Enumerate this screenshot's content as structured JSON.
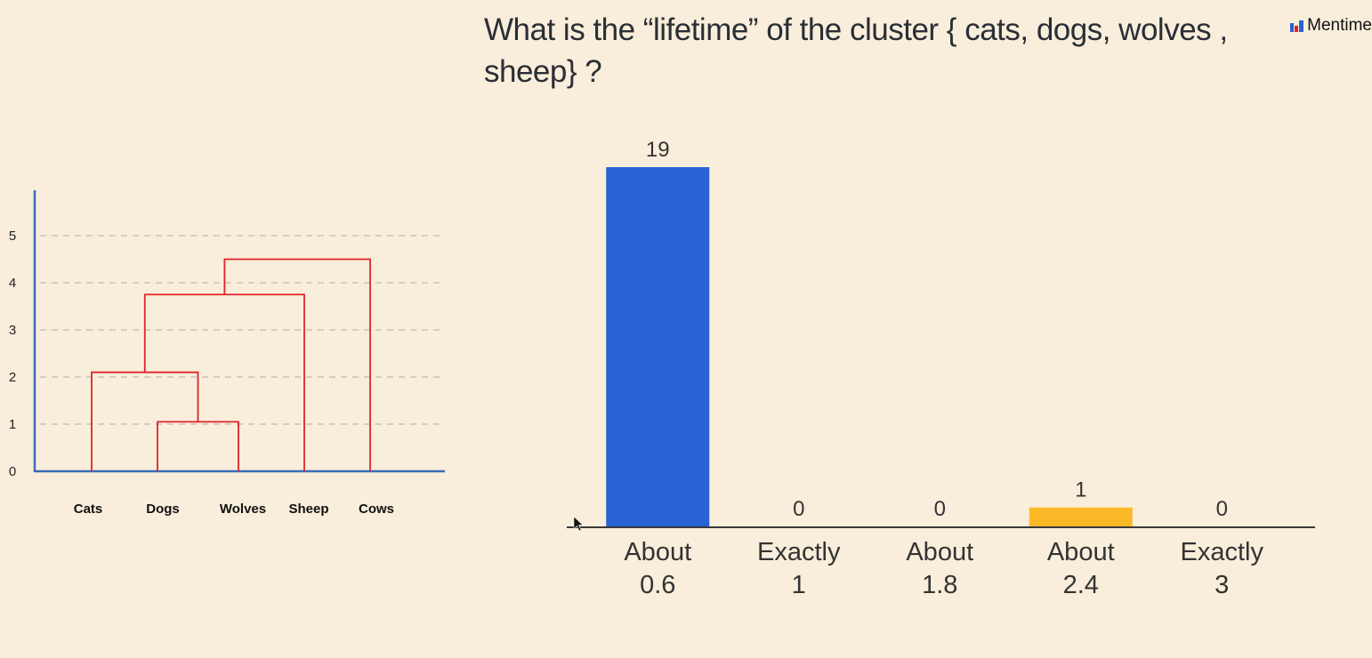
{
  "header": {
    "question": "What is the “lifetime” of the cluster { cats, dogs, wolves , sheep} ?",
    "brand": "Mentime"
  },
  "colors": {
    "background": "#f9eedb",
    "bar_primary": "#2962d4",
    "bar_highlight": "#fbb928",
    "dendrogram_line": "#e0242a",
    "axis_blue": "#3c6bb4",
    "grid": "#bdbab2"
  },
  "chart_data": [
    {
      "type": "bar",
      "title": "",
      "categories": [
        "About 0.6",
        "Exactly 1",
        "About 1.8",
        "About 2.4",
        "Exactly 3"
      ],
      "category_lines": [
        [
          "About",
          "0.6"
        ],
        [
          "Exactly",
          "1"
        ],
        [
          "About",
          "1.8"
        ],
        [
          "About",
          "2.4"
        ],
        [
          "Exactly",
          "3"
        ]
      ],
      "values": [
        19,
        0,
        0,
        1,
        0
      ],
      "highlight_index": 3,
      "xlabel": "",
      "ylabel": "",
      "ylim": [
        0,
        19
      ],
      "grid": false
    },
    {
      "type": "dendrogram",
      "leaves": [
        "Cats",
        "Dogs",
        "Wolves",
        "Sheep",
        "Cows"
      ],
      "y_ticks": [
        0,
        1,
        2,
        3,
        4,
        5
      ],
      "ylim": [
        0,
        5.4
      ],
      "grid": true,
      "merges": [
        {
          "children": [
            "Dogs",
            "Wolves"
          ],
          "height": 1.05
        },
        {
          "children": [
            "Cats",
            "{Dogs, Wolves}"
          ],
          "height": 2.1
        },
        {
          "children": [
            "{Cats, Dogs, Wolves}",
            "Sheep"
          ],
          "height": 3.75
        },
        {
          "children": [
            "{Cats, Dogs, Wolves, Sheep}",
            "Cows"
          ],
          "height": 4.5
        }
      ]
    }
  ]
}
